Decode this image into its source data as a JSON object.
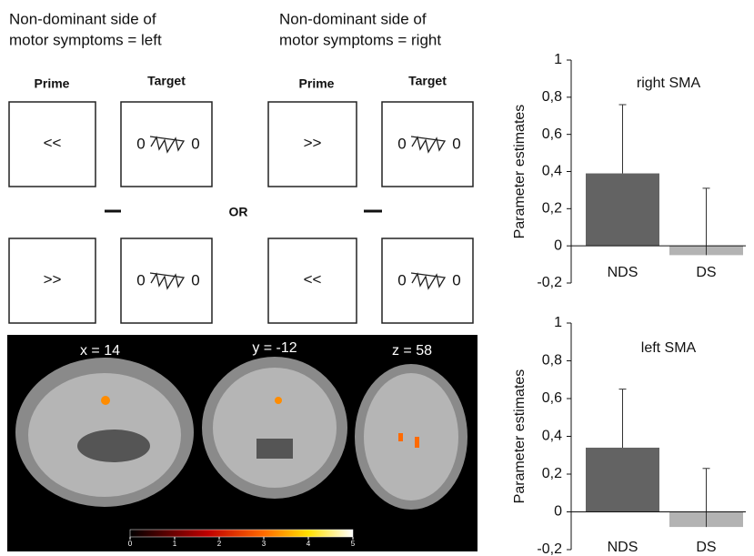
{
  "headers": [
    [
      "Non-dominant side of",
      "motor symptoms = left"
    ],
    [
      "Non-dominant side of",
      "motor symptoms = right"
    ]
  ],
  "prime_label": "Prime",
  "target_label": "Target",
  "or_label": "OR",
  "boxes": [
    [
      "<<",
      ">>"
    ],
    [
      ">>",
      "<<"
    ]
  ],
  "mask_flank": "0",
  "brain": {
    "labels": [
      "x = 14",
      "y = -12",
      "z = 58"
    ],
    "colorbar_lim": [
      0,
      5
    ],
    "colorbar_ticks": [
      0,
      1,
      2,
      3,
      4,
      5
    ]
  },
  "chart_data": [
    {
      "type": "bar",
      "title": "right SMA",
      "ylabel": "Parameter estimates",
      "categories": [
        "NDS",
        "DS"
      ],
      "values": [
        0.39,
        -0.05
      ],
      "errors": [
        0.37,
        0.36
      ],
      "colors": [
        "#636363",
        "#b3b3b3"
      ],
      "ylim": [
        -0.2,
        1
      ],
      "yticks": [
        {
          "value": -0.2,
          "label": "-0,2"
        },
        0,
        {
          "value": 0.2,
          "label": "0,2"
        },
        {
          "value": 0.4,
          "label": "0,4"
        },
        {
          "value": 0.6,
          "label": "0,6"
        },
        {
          "value": 0.8,
          "label": "0,8"
        },
        1
      ]
    },
    {
      "type": "bar",
      "title": "left SMA",
      "ylabel": "Parameter estimates",
      "categories": [
        "NDS",
        "DS"
      ],
      "values": [
        0.34,
        -0.08
      ],
      "errors": [
        0.31,
        0.31
      ],
      "colors": [
        "#636363",
        "#b3b3b3"
      ],
      "ylim": [
        -0.2,
        1
      ],
      "yticks": [
        {
          "value": -0.2,
          "label": "-0,2"
        },
        0,
        {
          "value": 0.2,
          "label": "0,2"
        },
        {
          "value": 0.4,
          "label": "0,4"
        },
        {
          "value": 0.6,
          "label": "0,6"
        },
        {
          "value": 0.8,
          "label": "0,8"
        },
        1
      ]
    }
  ]
}
